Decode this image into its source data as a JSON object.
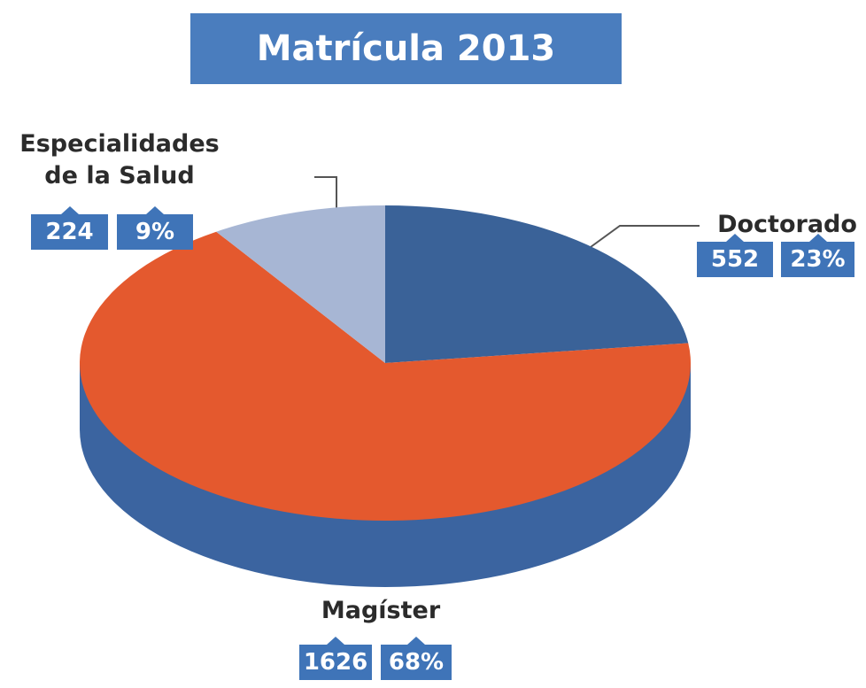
{
  "chart_data": {
    "type": "pie",
    "title": "Matrícula 2013",
    "categories": [
      "Doctorado",
      "Magíster",
      "Especialidades de la Salud"
    ],
    "values": [
      552,
      1626,
      224
    ],
    "percentages": [
      23,
      68,
      9
    ],
    "percentage_labels": [
      "23%",
      "68%",
      "9%"
    ],
    "colors": [
      "#3a6298",
      "#e4592e",
      "#a7b6d4"
    ]
  }
}
